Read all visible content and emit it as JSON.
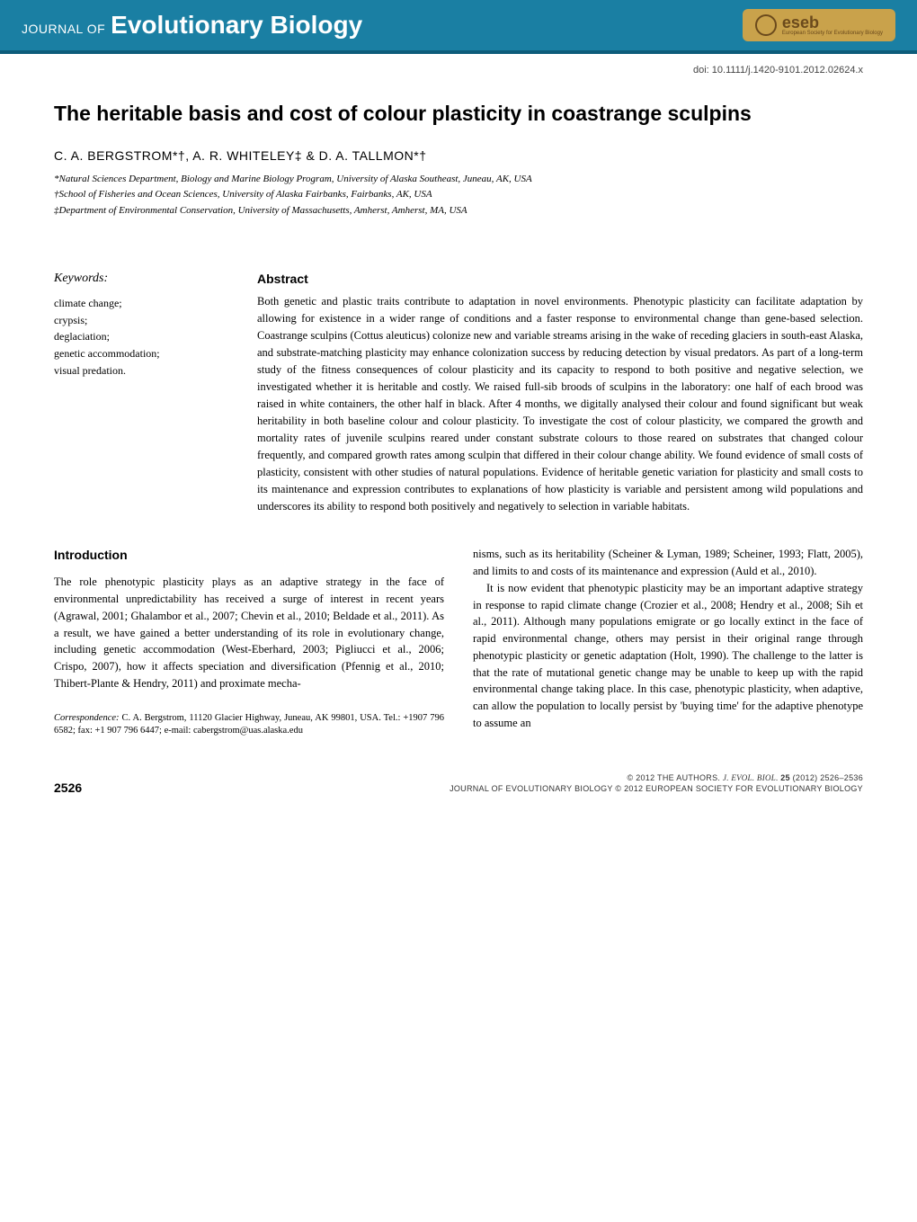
{
  "journal": {
    "prefix": "JOURNAL OF",
    "name": "Evolutionary Biology",
    "society_acronym": "eseb",
    "society_full": "European Society for Evolutionary Biology",
    "header_bg": "#1a7fa3",
    "header_border": "#0d5c7a",
    "badge_bg": "#c9a24b",
    "badge_fg": "#6b4a1c"
  },
  "doi": "doi: 10.1111/j.1420-9101.2012.02624.x",
  "article": {
    "title": "The heritable basis and cost of colour plasticity in coastrange sculpins",
    "authors_line": "C. A. BERGSTROM*†, A. R. WHITELEY‡ & D. A. TALLMON*†",
    "affiliations": {
      "a1": "*Natural Sciences Department, Biology and Marine Biology Program, University of Alaska Southeast, Juneau, AK, USA",
      "a2": "†School of Fisheries and Ocean Sciences, University of Alaska Fairbanks, Fairbanks, AK, USA",
      "a3": "‡Department of Environmental Conservation, University of Massachusetts, Amherst, Amherst, MA, USA"
    }
  },
  "keywords": {
    "heading": "Keywords:",
    "items_joined": "climate change;\ncrypsis;\ndeglaciation;\ngenetic accommodation;\nvisual predation."
  },
  "abstract": {
    "heading": "Abstract",
    "text": "Both genetic and plastic traits contribute to adaptation in novel environments. Phenotypic plasticity can facilitate adaptation by allowing for existence in a wider range of conditions and a faster response to environmental change than gene-based selection. Coastrange sculpins (Cottus aleuticus) colonize new and variable streams arising in the wake of receding glaciers in south-east Alaska, and substrate-matching plasticity may enhance colonization success by reducing detection by visual predators. As part of a long-term study of the fitness consequences of colour plasticity and its capacity to respond to both positive and negative selection, we investigated whether it is heritable and costly. We raised full-sib broods of sculpins in the laboratory: one half of each brood was raised in white containers, the other half in black. After 4 months, we digitally analysed their colour and found significant but weak heritability in both baseline colour and colour plasticity. To investigate the cost of colour plasticity, we compared the growth and mortality rates of juvenile sculpins reared under constant substrate colours to those reared on substrates that changed colour frequently, and compared growth rates among sculpin that differed in their colour change ability. We found evidence of small costs of plasticity, consistent with other studies of natural populations. Evidence of heritable genetic variation for plasticity and small costs to its maintenance and expression contributes to explanations of how plasticity is variable and persistent among wild populations and underscores its ability to respond both positively and negatively to selection in variable habitats."
  },
  "introduction": {
    "heading": "Introduction",
    "col1": "The role phenotypic plasticity plays as an adaptive strategy in the face of environmental unpredictability has received a surge of interest in recent years (Agrawal, 2001; Ghalambor et al., 2007; Chevin et al., 2010; Beldade et al., 2011). As a result, we have gained a better understanding of its role in evolutionary change, including genetic accommodation (West-Eberhard, 2003; Pigliucci et al., 2006; Crispo, 2007), how it affects speciation and diversification (Pfennig et al., 2010; Thibert-Plante & Hendry, 2011) and proximate mecha-",
    "col2a": "nisms, such as its heritability (Scheiner & Lyman, 1989; Scheiner, 1993; Flatt, 2005), and limits to and costs of its maintenance and expression (Auld et al., 2010).",
    "col2b": "It is now evident that phenotypic plasticity may be an important adaptive strategy in response to rapid climate change (Crozier et al., 2008; Hendry et al., 2008; Sih et al., 2011). Although many populations emigrate or go locally extinct in the face of rapid environmental change, others may persist in their original range through phenotypic plasticity or genetic adaptation (Holt, 1990). The challenge to the latter is that the rate of mutational genetic change may be unable to keep up with the rapid environmental change taking place. In this case, phenotypic plasticity, when adaptive, can allow the population to locally persist by 'buying time' for the adaptive phenotype to assume an"
  },
  "correspondence": {
    "label": "Correspondence:",
    "text": " C. A. Bergstrom, 11120 Glacier Highway, Juneau, AK 99801, USA. Tel.: +1907 796 6582; fax: +1 907 796 6447; e-mail: cabergstrom@uas.alaska.edu"
  },
  "footer": {
    "page": "2526",
    "line1_a": "© 2012 THE AUTHORS. ",
    "line1_b": "J. EVOL. BIOL. ",
    "line1_c": "25",
    "line1_d": " (2012) 2526–2536",
    "line2": "JOURNAL OF EVOLUTIONARY BIOLOGY © 2012 EUROPEAN SOCIETY FOR EVOLUTIONARY BIOLOGY"
  }
}
